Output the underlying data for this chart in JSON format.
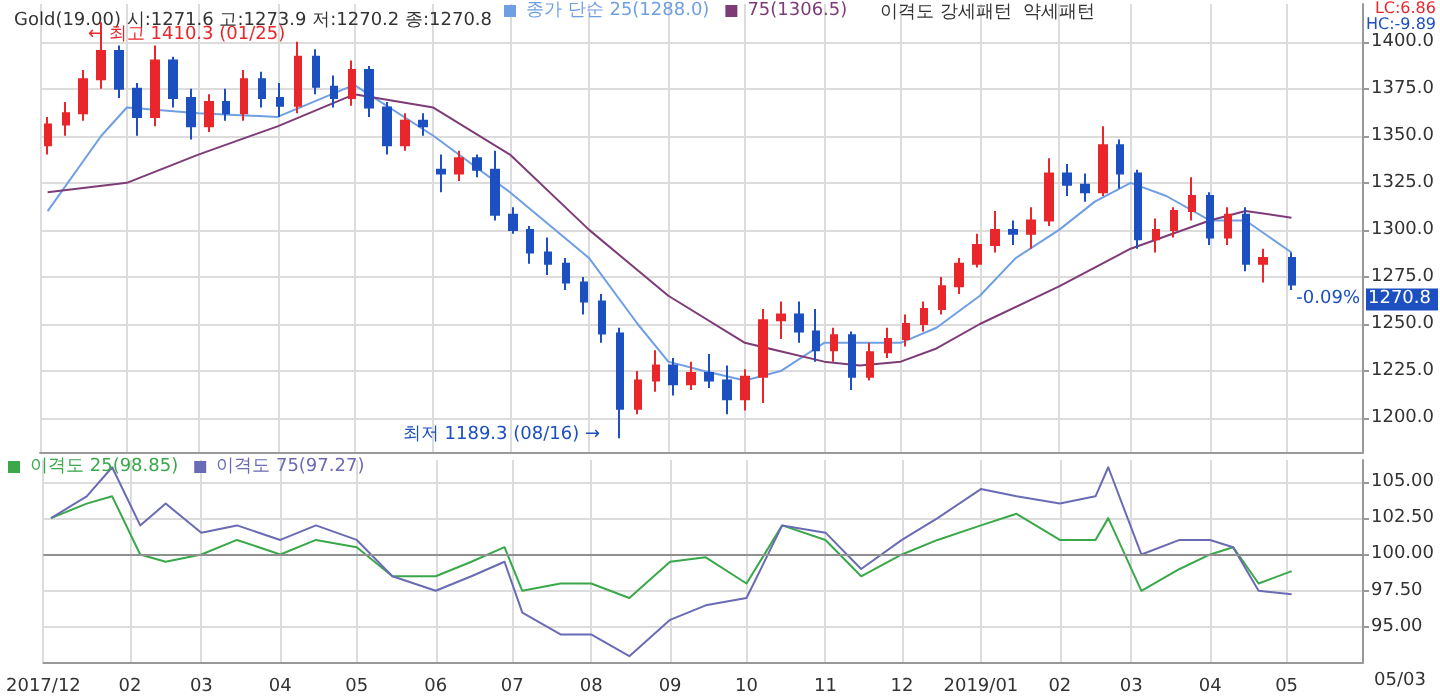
{
  "chart_data": [
    {
      "type": "candlestick",
      "title": "Gold(19.00) 시:1271.6 고:1273.9 저:1270.2 종:1270.8",
      "x": [
        "2018-01-01",
        "2018-01-08",
        "2018-01-15",
        "2018-01-22",
        "2018-01-29",
        "2018-02-05",
        "2018-02-12",
        "2018-02-19",
        "2018-02-26",
        "2018-03-05",
        "2018-03-12",
        "2018-03-19",
        "2018-03-26",
        "2018-04-02",
        "2018-04-09",
        "2018-04-16",
        "2018-04-23",
        "2018-04-30",
        "2018-05-07",
        "2018-05-14",
        "2018-05-21",
        "2018-05-28",
        "2018-06-04",
        "2018-06-11",
        "2018-06-18",
        "2018-06-25",
        "2018-07-02",
        "2018-07-09",
        "2018-07-16",
        "2018-07-23",
        "2018-07-30",
        "2018-08-06",
        "2018-08-13",
        "2018-08-20",
        "2018-08-27",
        "2018-09-03",
        "2018-09-10",
        "2018-09-17",
        "2018-09-24",
        "2018-10-01",
        "2018-10-08",
        "2018-10-15",
        "2018-10-22",
        "2018-10-29",
        "2018-11-05",
        "2018-11-12",
        "2018-11-19",
        "2018-11-26",
        "2018-12-03",
        "2018-12-10",
        "2018-12-17",
        "2018-12-24",
        "2018-12-31",
        "2019-01-07",
        "2019-01-14",
        "2019-01-21",
        "2019-01-28",
        "2019-02-04",
        "2019-02-11",
        "2019-02-18",
        "2019-02-25",
        "2019-03-04",
        "2019-03-11",
        "2019-03-18",
        "2019-03-25",
        "2019-04-01",
        "2019-04-08",
        "2019-04-15",
        "2019-04-22",
        "2019-05-03"
      ],
      "ohlc": [
        [
          1345,
          1360,
          1340,
          1356
        ],
        [
          1356,
          1368,
          1350,
          1362
        ],
        [
          1362,
          1385,
          1358,
          1380
        ],
        [
          1380,
          1410.3,
          1375,
          1395
        ],
        [
          1395,
          1398,
          1370,
          1375
        ],
        [
          1375,
          1378,
          1350,
          1360
        ],
        [
          1360,
          1398,
          1355,
          1390
        ],
        [
          1390,
          1392,
          1365,
          1370
        ],
        [
          1370,
          1375,
          1348,
          1355
        ],
        [
          1355,
          1372,
          1352,
          1368
        ],
        [
          1368,
          1375,
          1358,
          1362
        ],
        [
          1362,
          1385,
          1358,
          1380
        ],
        [
          1380,
          1384,
          1365,
          1370
        ],
        [
          1370,
          1378,
          1360,
          1366
        ],
        [
          1366,
          1400,
          1362,
          1392
        ],
        [
          1392,
          1396,
          1372,
          1376
        ],
        [
          1376,
          1382,
          1365,
          1370
        ],
        [
          1370,
          1390,
          1366,
          1385
        ],
        [
          1385,
          1387,
          1360,
          1365
        ],
        [
          1365,
          1368,
          1340,
          1345
        ],
        [
          1345,
          1362,
          1342,
          1358
        ],
        [
          1358,
          1362,
          1350,
          1355
        ],
        [
          1332,
          1340,
          1320,
          1330
        ],
        [
          1330,
          1342,
          1326,
          1338
        ],
        [
          1338,
          1340,
          1328,
          1332
        ],
        [
          1332,
          1342,
          1305,
          1308
        ],
        [
          1308,
          1312,
          1298,
          1300
        ],
        [
          1300,
          1302,
          1282,
          1288
        ],
        [
          1288,
          1296,
          1276,
          1282
        ],
        [
          1282,
          1285,
          1268,
          1272
        ],
        [
          1272,
          1275,
          1255,
          1262
        ],
        [
          1262,
          1266,
          1240,
          1245
        ],
        [
          1245,
          1248,
          1189.3,
          1205
        ],
        [
          1205,
          1225,
          1202,
          1220
        ],
        [
          1220,
          1236,
          1214,
          1228
        ],
        [
          1228,
          1232,
          1212,
          1218
        ],
        [
          1218,
          1230,
          1215,
          1224
        ],
        [
          1224,
          1234,
          1216,
          1220
        ],
        [
          1220,
          1228,
          1202,
          1210
        ],
        [
          1210,
          1226,
          1204,
          1222
        ],
        [
          1222,
          1258,
          1208,
          1252
        ],
        [
          1252,
          1262,
          1242,
          1255
        ],
        [
          1255,
          1262,
          1240,
          1246
        ],
        [
          1246,
          1258,
          1230,
          1236
        ],
        [
          1236,
          1248,
          1230,
          1244
        ],
        [
          1244,
          1246,
          1215,
          1222
        ],
        [
          1222,
          1240,
          1220,
          1235
        ],
        [
          1235,
          1248,
          1232,
          1242
        ],
        [
          1242,
          1255,
          1238,
          1250
        ],
        [
          1250,
          1262,
          1246,
          1258
        ],
        [
          1258,
          1275,
          1255,
          1270
        ],
        [
          1270,
          1285,
          1266,
          1282
        ],
        [
          1282,
          1298,
          1280,
          1292
        ],
        [
          1292,
          1310,
          1288,
          1300
        ],
        [
          1300,
          1305,
          1292,
          1298
        ],
        [
          1298,
          1312,
          1290,
          1305
        ],
        [
          1305,
          1338,
          1302,
          1330
        ],
        [
          1330,
          1335,
          1318,
          1324
        ],
        [
          1324,
          1330,
          1315,
          1320
        ],
        [
          1320,
          1355,
          1318,
          1345
        ],
        [
          1345,
          1348,
          1322,
          1330
        ],
        [
          1330,
          1332,
          1290,
          1295
        ],
        [
          1295,
          1306,
          1288,
          1300
        ],
        [
          1300,
          1312,
          1296,
          1310
        ],
        [
          1310,
          1328,
          1305,
          1318
        ],
        [
          1318,
          1320,
          1292,
          1296
        ],
        [
          1296,
          1312,
          1292,
          1308
        ],
        [
          1308,
          1312,
          1278,
          1282
        ],
        [
          1282,
          1290,
          1272,
          1285
        ],
        [
          1285,
          1288,
          1268,
          1271
        ]
      ],
      "colors": [
        "#e8262b",
        "#e8262b",
        "#e8262b",
        "#e8262b",
        "#1c4fc0",
        "#1c4fc0",
        "#e8262b",
        "#1c4fc0",
        "#1c4fc0",
        "#e8262b",
        "#1c4fc0",
        "#e8262b",
        "#1c4fc0",
        "#1c4fc0",
        "#e8262b",
        "#1c4fc0",
        "#1c4fc0",
        "#e8262b",
        "#1c4fc0",
        "#1c4fc0",
        "#e8262b",
        "#1c4fc0",
        "#1c4fc0",
        "#e8262b",
        "#1c4fc0",
        "#1c4fc0",
        "#1c4fc0",
        "#1c4fc0",
        "#1c4fc0",
        "#1c4fc0",
        "#1c4fc0",
        "#1c4fc0",
        "#1c4fc0",
        "#e8262b",
        "#e8262b",
        "#1c4fc0",
        "#e8262b",
        "#1c4fc0",
        "#1c4fc0",
        "#e8262b",
        "#e8262b",
        "#e8262b",
        "#1c4fc0",
        "#1c4fc0",
        "#e8262b",
        "#1c4fc0",
        "#e8262b",
        "#e8262b",
        "#e8262b",
        "#e8262b",
        "#e8262b",
        "#e8262b",
        "#e8262b",
        "#e8262b",
        "#1c4fc0",
        "#e8262b",
        "#e8262b",
        "#1c4fc0",
        "#1c4fc0",
        "#e8262b",
        "#1c4fc0",
        "#1c4fc0",
        "#e8262b",
        "#e8262b",
        "#e8262b",
        "#1c4fc0",
        "#e8262b",
        "#1c4fc0",
        "#e8262b",
        "#1c4fc0"
      ],
      "series": [
        {
          "type": "line",
          "name": "종가 단순 25(1288.0)",
          "color": "#6f9fe3",
          "x": [
            "2018-01-01",
            "2018-01-22",
            "2018-02-01",
            "2018-03-01",
            "2018-04-01",
            "2018-05-01",
            "2018-06-01",
            "2018-07-01",
            "2018-08-01",
            "2018-08-20",
            "2018-09-01",
            "2018-09-15",
            "2018-10-01",
            "2018-10-15",
            "2018-11-01",
            "2018-11-15",
            "2018-12-01",
            "2018-12-15",
            "2019-01-01",
            "2019-01-15",
            "2019-02-01",
            "2019-02-15",
            "2019-03-01",
            "2019-03-15",
            "2019-04-01",
            "2019-04-15",
            "2019-05-03"
          ],
          "values": [
            1310,
            1350,
            1365,
            1362,
            1360,
            1377,
            1350,
            1320,
            1285,
            1250,
            1230,
            1225,
            1220,
            1225,
            1240,
            1240,
            1240,
            1248,
            1265,
            1285,
            1300,
            1315,
            1325,
            1318,
            1305,
            1305,
            1288
          ]
        },
        {
          "type": "line",
          "name": "75(1306.5)",
          "color": "#7d3c78",
          "x": [
            "2018-01-01",
            "2018-02-01",
            "2018-03-01",
            "2018-04-01",
            "2018-05-01",
            "2018-06-01",
            "2018-07-01",
            "2018-08-01",
            "2018-09-01",
            "2018-10-01",
            "2018-11-01",
            "2018-11-15",
            "2018-12-01",
            "2018-12-15",
            "2019-01-01",
            "2019-02-01",
            "2019-03-01",
            "2019-04-01",
            "2019-04-15",
            "2019-05-03"
          ],
          "values": [
            1320,
            1325,
            1340,
            1355,
            1372,
            1365,
            1340,
            1300,
            1265,
            1240,
            1230,
            1228,
            1230,
            1237,
            1250,
            1270,
            1290,
            1305,
            1310,
            1306.5
          ]
        }
      ],
      "xlim": [
        "2017-12-29",
        "2019-05-31"
      ],
      "xticks": [
        {
          "value": "2017-12-29",
          "label": null
        },
        {
          "value": "2018-02-01",
          "label": null
        },
        {
          "value": "2018-03-01",
          "label": null
        },
        {
          "value": "2018-04-01",
          "label": null
        },
        {
          "value": "2018-05-01",
          "label": null
        },
        {
          "value": "2018-06-01",
          "label": null
        },
        {
          "value": "2018-07-01",
          "label": null
        },
        {
          "value": "2018-08-01",
          "label": null
        },
        {
          "value": "2018-09-01",
          "label": null
        },
        {
          "value": "2018-10-01",
          "label": null
        },
        {
          "value": "2018-11-01",
          "label": null
        },
        {
          "value": "2018-12-01",
          "label": null
        },
        {
          "value": "2019-01-01",
          "label": null
        },
        {
          "value": "2019-02-01",
          "label": null
        },
        {
          "value": "2019-03-01",
          "label": null
        },
        {
          "value": "2019-04-01",
          "label": null
        },
        {
          "value": "2019-05-01",
          "label": null
        }
      ],
      "ylim": [
        1182,
        1420
      ],
      "yticks": [
        {
          "value": 1200,
          "label": "1200.0"
        },
        {
          "value": 1225,
          "label": "1225.0"
        },
        {
          "value": 1250,
          "label": "1250.0"
        },
        {
          "value": 1275,
          "label": "1275.0"
        },
        {
          "value": 1300,
          "label": "1300.0"
        },
        {
          "value": 1325,
          "label": "1325.0"
        },
        {
          "value": 1350,
          "label": "1350.0"
        },
        {
          "value": 1375,
          "label": "1375.0"
        },
        {
          "value": 1400,
          "label": "1400.0"
        }
      ],
      "tick_labels": "y",
      "grid": true,
      "legend": "top left",
      "annotations": [
        "이격도 강세패턴  약세패턴",
        "LC:6.86",
        "HC:-9.89",
        "1270.8",
        "-0.09%",
        "← 최고 1410.3 (01/25)",
        "최저 1189.3 (08/16) →"
      ]
    },
    {
      "type": "line",
      "series": [
        {
          "name": "이격도 25(98.85)",
          "color": "#3aa84a",
          "x": [
            "2018-01-01",
            "2018-01-15",
            "2018-01-25",
            "2018-02-05",
            "2018-02-15",
            "2018-03-01",
            "2018-03-15",
            "2018-04-01",
            "2018-04-15",
            "2018-05-01",
            "2018-05-15",
            "2018-06-01",
            "2018-06-15",
            "2018-06-28",
            "2018-07-05",
            "2018-07-20",
            "2018-08-01",
            "2018-08-16",
            "2018-09-01",
            "2018-09-15",
            "2018-10-01",
            "2018-10-15",
            "2018-11-01",
            "2018-11-15",
            "2018-12-01",
            "2018-12-15",
            "2019-01-01",
            "2019-01-15",
            "2019-02-01",
            "2019-02-15",
            "2019-02-20",
            "2019-03-05",
            "2019-03-20",
            "2019-04-01",
            "2019-04-10",
            "2019-04-20",
            "2019-05-03"
          ],
          "values": [
            102.5,
            103.5,
            104,
            100,
            99.5,
            100,
            101,
            100,
            101,
            100.5,
            98.5,
            98.5,
            99.5,
            100.5,
            97.5,
            98,
            98,
            97,
            99.5,
            99.8,
            98,
            102,
            101,
            98.5,
            100,
            101,
            102,
            102.8,
            101,
            101,
            102.5,
            97.5,
            99,
            100,
            100.5,
            98,
            98.85
          ]
        },
        {
          "name": "이격도 75(97.27)",
          "color": "#6b6bb5",
          "x": [
            "2018-01-01",
            "2018-01-15",
            "2018-01-25",
            "2018-02-05",
            "2018-02-15",
            "2018-03-01",
            "2018-03-15",
            "2018-04-01",
            "2018-04-15",
            "2018-05-01",
            "2018-05-15",
            "2018-06-01",
            "2018-06-15",
            "2018-06-28",
            "2018-07-05",
            "2018-07-20",
            "2018-08-01",
            "2018-08-16",
            "2018-09-01",
            "2018-09-15",
            "2018-10-01",
            "2018-10-15",
            "2018-11-01",
            "2018-11-15",
            "2018-12-01",
            "2018-12-15",
            "2019-01-01",
            "2019-01-15",
            "2019-02-01",
            "2019-02-15",
            "2019-02-20",
            "2019-03-05",
            "2019-03-20",
            "2019-04-01",
            "2019-04-10",
            "2019-04-20",
            "2019-05-03"
          ],
          "values": [
            102.5,
            104,
            106,
            102,
            103.5,
            101.5,
            102,
            101,
            102,
            101,
            98.5,
            97.5,
            98.5,
            99.5,
            96,
            94.5,
            94.5,
            93,
            95.5,
            96.5,
            97,
            102,
            101.5,
            99,
            101,
            102.5,
            104.5,
            104,
            103.5,
            104,
            106,
            100,
            101,
            101,
            100.5,
            97.5,
            97.27
          ]
        }
      ],
      "xlim": [
        "2017-12-29",
        "2019-05-31"
      ],
      "xticks": [
        {
          "value": "2017-12-29",
          "label": "2017/12"
        },
        {
          "value": "2018-02-01",
          "label": "02"
        },
        {
          "value": "2018-03-01",
          "label": "03"
        },
        {
          "value": "2018-04-01",
          "label": "04"
        },
        {
          "value": "2018-05-01",
          "label": "05"
        },
        {
          "value": "2018-06-01",
          "label": "06"
        },
        {
          "value": "2018-07-01",
          "label": "07"
        },
        {
          "value": "2018-08-01",
          "label": "08"
        },
        {
          "value": "2018-09-01",
          "label": "09"
        },
        {
          "value": "2018-10-01",
          "label": "10"
        },
        {
          "value": "2018-11-01",
          "label": "11"
        },
        {
          "value": "2018-12-01",
          "label": "12"
        },
        {
          "value": "2019-01-01",
          "label": "2019/01"
        },
        {
          "value": "2019-02-01",
          "label": "02"
        },
        {
          "value": "2019-03-01",
          "label": "03"
        },
        {
          "value": "2019-04-01",
          "label": "04"
        },
        {
          "value": "2019-05-01",
          "label": "05"
        }
      ],
      "ylim": [
        92.6,
        106.5
      ],
      "yticks": [
        {
          "value": 95,
          "label": "95.00"
        },
        {
          "value": 97.5,
          "label": "97.50"
        },
        {
          "value": 100,
          "label": "100.00"
        },
        {
          "value": 102.5,
          "label": "102.50"
        },
        {
          "value": 105,
          "label": "105.00"
        }
      ],
      "grid": true,
      "legend": "top left",
      "marker": "none",
      "line_style": "solid",
      "ref_lines": [
        {
          "axis": "y",
          "value": 100,
          "color": "#909090"
        }
      ],
      "annotations": [
        "05/03"
      ]
    }
  ]
}
